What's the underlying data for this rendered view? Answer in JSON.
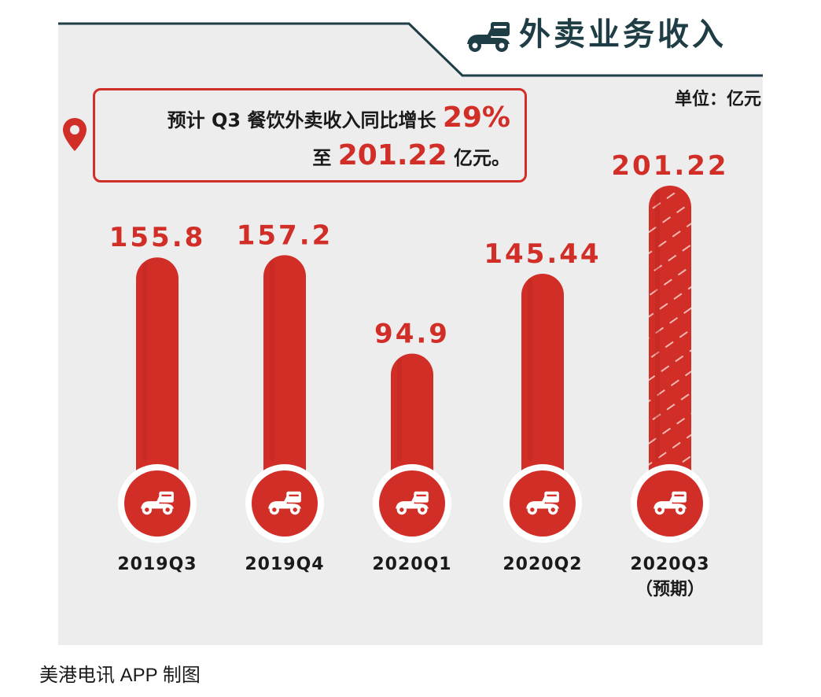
{
  "header": {
    "title": "外卖业务收入",
    "unit": "单位：亿元",
    "icon": "scooter-icon"
  },
  "callout": {
    "line1_text": "预计 Q3 餐饮外卖收入同比增长 ",
    "line1_highlight": "29%",
    "line2_prefix": "至 ",
    "line2_highlight": "201.22",
    "line2_suffix": " 亿元。"
  },
  "chart_data": {
    "type": "bar",
    "title": "外卖业务收入",
    "unit": "单位：亿元",
    "categories": [
      "2019Q3",
      "2019Q4",
      "2020Q1",
      "2020Q2",
      "2020Q3"
    ],
    "category_notes": [
      "",
      "",
      "",
      "",
      "（预期）"
    ],
    "values": [
      155.8,
      157.2,
      94.9,
      145.44,
      201.22
    ],
    "value_labels": [
      "155.8",
      "157.2",
      "94.9",
      "145.44",
      "201.22"
    ],
    "forecast": [
      false,
      false,
      false,
      false,
      true
    ],
    "colors": {
      "bar": "#d12e27",
      "forecast_stripe": "#f2b8b4",
      "label": "#d12e27",
      "dark": "#1f3d45"
    },
    "grid": false
  },
  "footer": {
    "credit": "美港电讯 APP 制图"
  }
}
